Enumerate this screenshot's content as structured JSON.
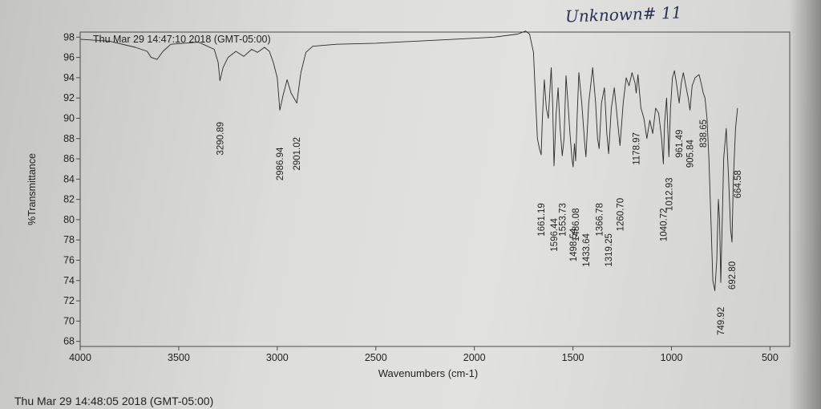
{
  "annotation": "Unknown# 11",
  "footer_timestamp": "Thu Mar 29 14:48:05 2018 (GMT-05:00)",
  "colors": {
    "ink": "#2a2a2a",
    "frame": "#4a4a4a",
    "handwriting": "#2a2f55"
  },
  "chart_data": {
    "type": "line",
    "title": "Thu Mar 29 14:47:10 2018 (GMT-05:00)",
    "xlabel": "Wavenumbers (cm-1)",
    "ylabel": "%Transmittance",
    "xlim": [
      4000,
      400
    ],
    "ylim": [
      67.5,
      98.5
    ],
    "x_ticks": [
      "4000",
      "3500",
      "3000",
      "2500",
      "2000",
      "1500",
      "1000",
      "500"
    ],
    "x_tick_values": [
      4000,
      3500,
      3000,
      2500,
      2000,
      1500,
      1000,
      500
    ],
    "y_ticks": [
      "68",
      "70",
      "72",
      "74",
      "76",
      "78",
      "80",
      "82",
      "84",
      "86",
      "88",
      "90",
      "92",
      "94",
      "96",
      "98"
    ],
    "y_tick_values": [
      68,
      70,
      72,
      74,
      76,
      78,
      80,
      82,
      84,
      86,
      88,
      90,
      92,
      94,
      96,
      98
    ],
    "series": [
      {
        "name": "spectrum",
        "points": [
          [
            4000,
            97.8
          ],
          [
            3850,
            97.6
          ],
          [
            3720,
            97.0
          ],
          [
            3660,
            96.6
          ],
          [
            3640,
            96.0
          ],
          [
            3610,
            95.8
          ],
          [
            3580,
            96.6
          ],
          [
            3540,
            97.3
          ],
          [
            3400,
            97.5
          ],
          [
            3320,
            96.8
          ],
          [
            3300,
            95.5
          ],
          [
            3291,
            93.7
          ],
          [
            3275,
            95.0
          ],
          [
            3250,
            96.0
          ],
          [
            3210,
            96.6
          ],
          [
            3170,
            96.1
          ],
          [
            3130,
            96.8
          ],
          [
            3100,
            96.5
          ],
          [
            3065,
            97.0
          ],
          [
            3040,
            96.6
          ],
          [
            3020,
            95.5
          ],
          [
            3000,
            94.0
          ],
          [
            2987,
            90.8
          ],
          [
            2970,
            92.3
          ],
          [
            2950,
            93.8
          ],
          [
            2930,
            92.5
          ],
          [
            2901,
            91.5
          ],
          [
            2880,
            94.5
          ],
          [
            2855,
            96.5
          ],
          [
            2820,
            97.1
          ],
          [
            2700,
            97.3
          ],
          [
            2500,
            97.4
          ],
          [
            2300,
            97.6
          ],
          [
            2100,
            97.8
          ],
          [
            1900,
            98.0
          ],
          [
            1780,
            98.3
          ],
          [
            1740,
            98.6
          ],
          [
            1720,
            98.3
          ],
          [
            1700,
            96.5
          ],
          [
            1690,
            92.0
          ],
          [
            1680,
            88.0
          ],
          [
            1670,
            87.0
          ],
          [
            1661,
            86.4
          ],
          [
            1655,
            90.0
          ],
          [
            1645,
            93.8
          ],
          [
            1635,
            91.0
          ],
          [
            1625,
            90.0
          ],
          [
            1610,
            95.0
          ],
          [
            1603,
            91.5
          ],
          [
            1596,
            85.3
          ],
          [
            1585,
            90.5
          ],
          [
            1575,
            93.0
          ],
          [
            1565,
            89.0
          ],
          [
            1554,
            86.3
          ],
          [
            1545,
            88.0
          ],
          [
            1535,
            94.2
          ],
          [
            1525,
            91.5
          ],
          [
            1515,
            88.5
          ],
          [
            1505,
            86.0
          ],
          [
            1499,
            85.2
          ],
          [
            1492,
            87.5
          ],
          [
            1486,
            85.8
          ],
          [
            1478,
            90.5
          ],
          [
            1470,
            94.5
          ],
          [
            1455,
            91.5
          ],
          [
            1440,
            87.5
          ],
          [
            1434,
            86.2
          ],
          [
            1420,
            91.5
          ],
          [
            1400,
            95.0
          ],
          [
            1385,
            91.5
          ],
          [
            1375,
            88.0
          ],
          [
            1367,
            87.0
          ],
          [
            1355,
            91.5
          ],
          [
            1340,
            93.0
          ],
          [
            1328,
            88.5
          ],
          [
            1319,
            86.5
          ],
          [
            1305,
            91.0
          ],
          [
            1290,
            93.0
          ],
          [
            1275,
            90.0
          ],
          [
            1261,
            87.3
          ],
          [
            1245,
            91.5
          ],
          [
            1230,
            94.0
          ],
          [
            1215,
            93.2
          ],
          [
            1200,
            94.5
          ],
          [
            1185,
            93.5
          ],
          [
            1179,
            92.5
          ],
          [
            1170,
            94.3
          ],
          [
            1155,
            91.0
          ],
          [
            1140,
            90.0
          ],
          [
            1125,
            88.0
          ],
          [
            1110,
            89.8
          ],
          [
            1095,
            88.5
          ],
          [
            1080,
            91.0
          ],
          [
            1065,
            90.5
          ],
          [
            1050,
            88.0
          ],
          [
            1041,
            85.5
          ],
          [
            1035,
            89.5
          ],
          [
            1025,
            92.0
          ],
          [
            1013,
            86.2
          ],
          [
            1005,
            91.0
          ],
          [
            995,
            94.0
          ],
          [
            985,
            94.7
          ],
          [
            975,
            93.5
          ],
          [
            961,
            91.5
          ],
          [
            950,
            93.5
          ],
          [
            940,
            94.5
          ],
          [
            925,
            93.0
          ],
          [
            915,
            92.0
          ],
          [
            906,
            90.8
          ],
          [
            895,
            93.2
          ],
          [
            880,
            94.0
          ],
          [
            860,
            94.3
          ],
          [
            850,
            93.5
          ],
          [
            839,
            92.5
          ],
          [
            830,
            92.0
          ],
          [
            820,
            90.0
          ],
          [
            810,
            86.0
          ],
          [
            800,
            80.0
          ],
          [
            790,
            74.0
          ],
          [
            780,
            73.0
          ],
          [
            770,
            76.0
          ],
          [
            762,
            82.0
          ],
          [
            756,
            80.0
          ],
          [
            750,
            73.8
          ],
          [
            742,
            80.0
          ],
          [
            735,
            86.0
          ],
          [
            722,
            89.0
          ],
          [
            710,
            84.0
          ],
          [
            700,
            79.0
          ],
          [
            693,
            77.8
          ],
          [
            686,
            84.0
          ],
          [
            675,
            89.0
          ],
          [
            665,
            91.0
          ]
        ]
      }
    ],
    "peak_labels": [
      {
        "x": 3290.89,
        "label": "3290.89",
        "y_val": 88.0
      },
      {
        "x": 2986.94,
        "label": "2986.94",
        "y_val": 85.5
      },
      {
        "x": 2901.02,
        "label": "2901.02",
        "y_val": 86.5
      },
      {
        "x": 1661.19,
        "label": "1661.19",
        "y_val": 80.0
      },
      {
        "x": 1596.44,
        "label": "1596.44",
        "y_val": 78.5
      },
      {
        "x": 1553.73,
        "label": "1553.73",
        "y_val": 80.0
      },
      {
        "x": 1498.54,
        "label": "1498.54",
        "y_val": 77.5
      },
      {
        "x": 1486.08,
        "label": "1486.08",
        "y_val": 79.5
      },
      {
        "x": 1433.64,
        "label": "1433.64",
        "y_val": 77.0
      },
      {
        "x": 1366.78,
        "label": "1366.78",
        "y_val": 80.0
      },
      {
        "x": 1319.25,
        "label": "1319.25",
        "y_val": 77.0
      },
      {
        "x": 1260.7,
        "label": "1260.70",
        "y_val": 80.5
      },
      {
        "x": 1178.97,
        "label": "1178.97",
        "y_val": 87.0
      },
      {
        "x": 1040.72,
        "label": "1040.72",
        "y_val": 79.5
      },
      {
        "x": 1012.93,
        "label": "1012.93",
        "y_val": 82.5
      },
      {
        "x": 961.49,
        "label": "961.49",
        "y_val": 87.5
      },
      {
        "x": 905.84,
        "label": "905.84",
        "y_val": 86.5
      },
      {
        "x": 838.65,
        "label": "838.65",
        "y_val": 88.5
      },
      {
        "x": 749.92,
        "label": "749.92",
        "y_val": 70.0
      },
      {
        "x": 692.8,
        "label": "692.80",
        "y_val": 74.5
      },
      {
        "x": 664.58,
        "label": "664.58",
        "y_val": 83.5
      }
    ]
  }
}
